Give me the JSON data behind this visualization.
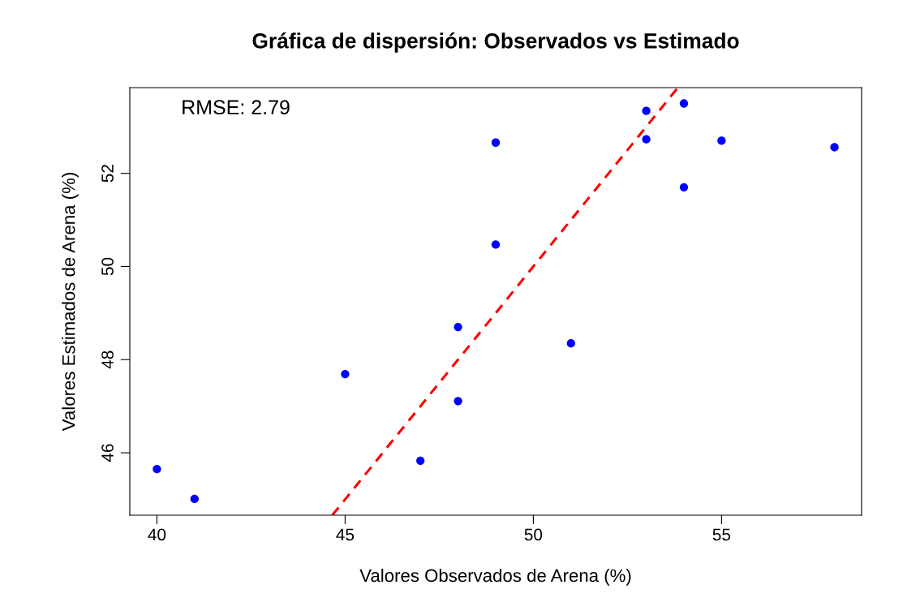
{
  "chart_data": {
    "type": "scatter",
    "title": "Gráfica de dispersión: Observados vs Estimado",
    "xlabel": "Valores Observados de Arena (%)",
    "ylabel": "Valores Estimados de Arena (%)",
    "annotations": [
      "RMSE: 2.79"
    ],
    "series": [
      {
        "color": "#0000ff",
        "marker": "circle",
        "x": [
          40,
          41,
          45,
          47,
          48,
          48,
          49,
          49,
          51,
          53,
          53,
          54,
          54,
          55,
          58
        ],
        "values": [
          45.65,
          45.01,
          47.69,
          45.83,
          48.7,
          47.11,
          52.66,
          50.47,
          48.35,
          53.34,
          52.73,
          53.5,
          51.7,
          52.7,
          52.56
        ]
      },
      {
        "type": "line",
        "color": "#ff0000",
        "line_style": "dashed",
        "marker": "none",
        "x": [
          44.66,
          53.84
        ],
        "values": [
          44.66,
          53.84
        ]
      }
    ],
    "xlim": [
      39.28,
      58.72
    ],
    "ylim": [
      44.66,
      53.84
    ],
    "xticks": [
      40,
      45,
      50,
      55
    ],
    "yticks": [
      46,
      48,
      50,
      52
    ],
    "grid": false,
    "legend": false
  }
}
